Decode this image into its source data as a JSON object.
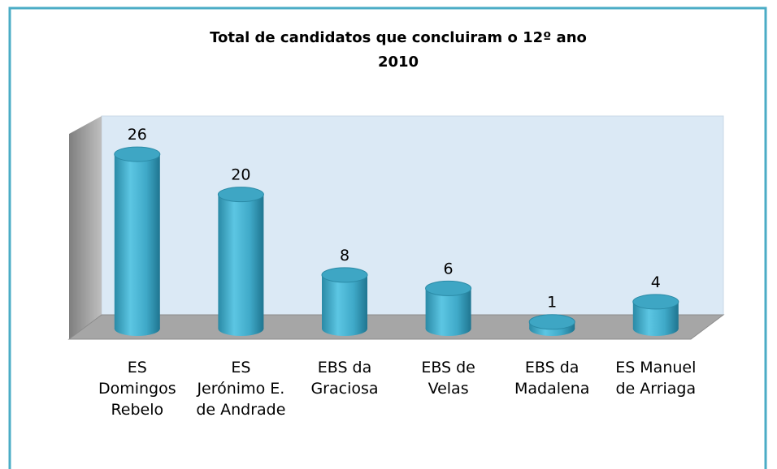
{
  "chart_data": {
    "type": "bar",
    "title": "Total de candidatos que concluiram o 12º ano",
    "subtitle": "2010",
    "categories": [
      "ES Domingos Rebelo",
      "ES Jerónimo E. de Andrade",
      "EBS da Graciosa",
      "EBS de Velas",
      "EBS da Madalena",
      "ES Manuel de Arriaga"
    ],
    "values": [
      26,
      20,
      8,
      6,
      1,
      4
    ],
    "color": "#4bacc6",
    "ylim": [
      0,
      30
    ]
  }
}
